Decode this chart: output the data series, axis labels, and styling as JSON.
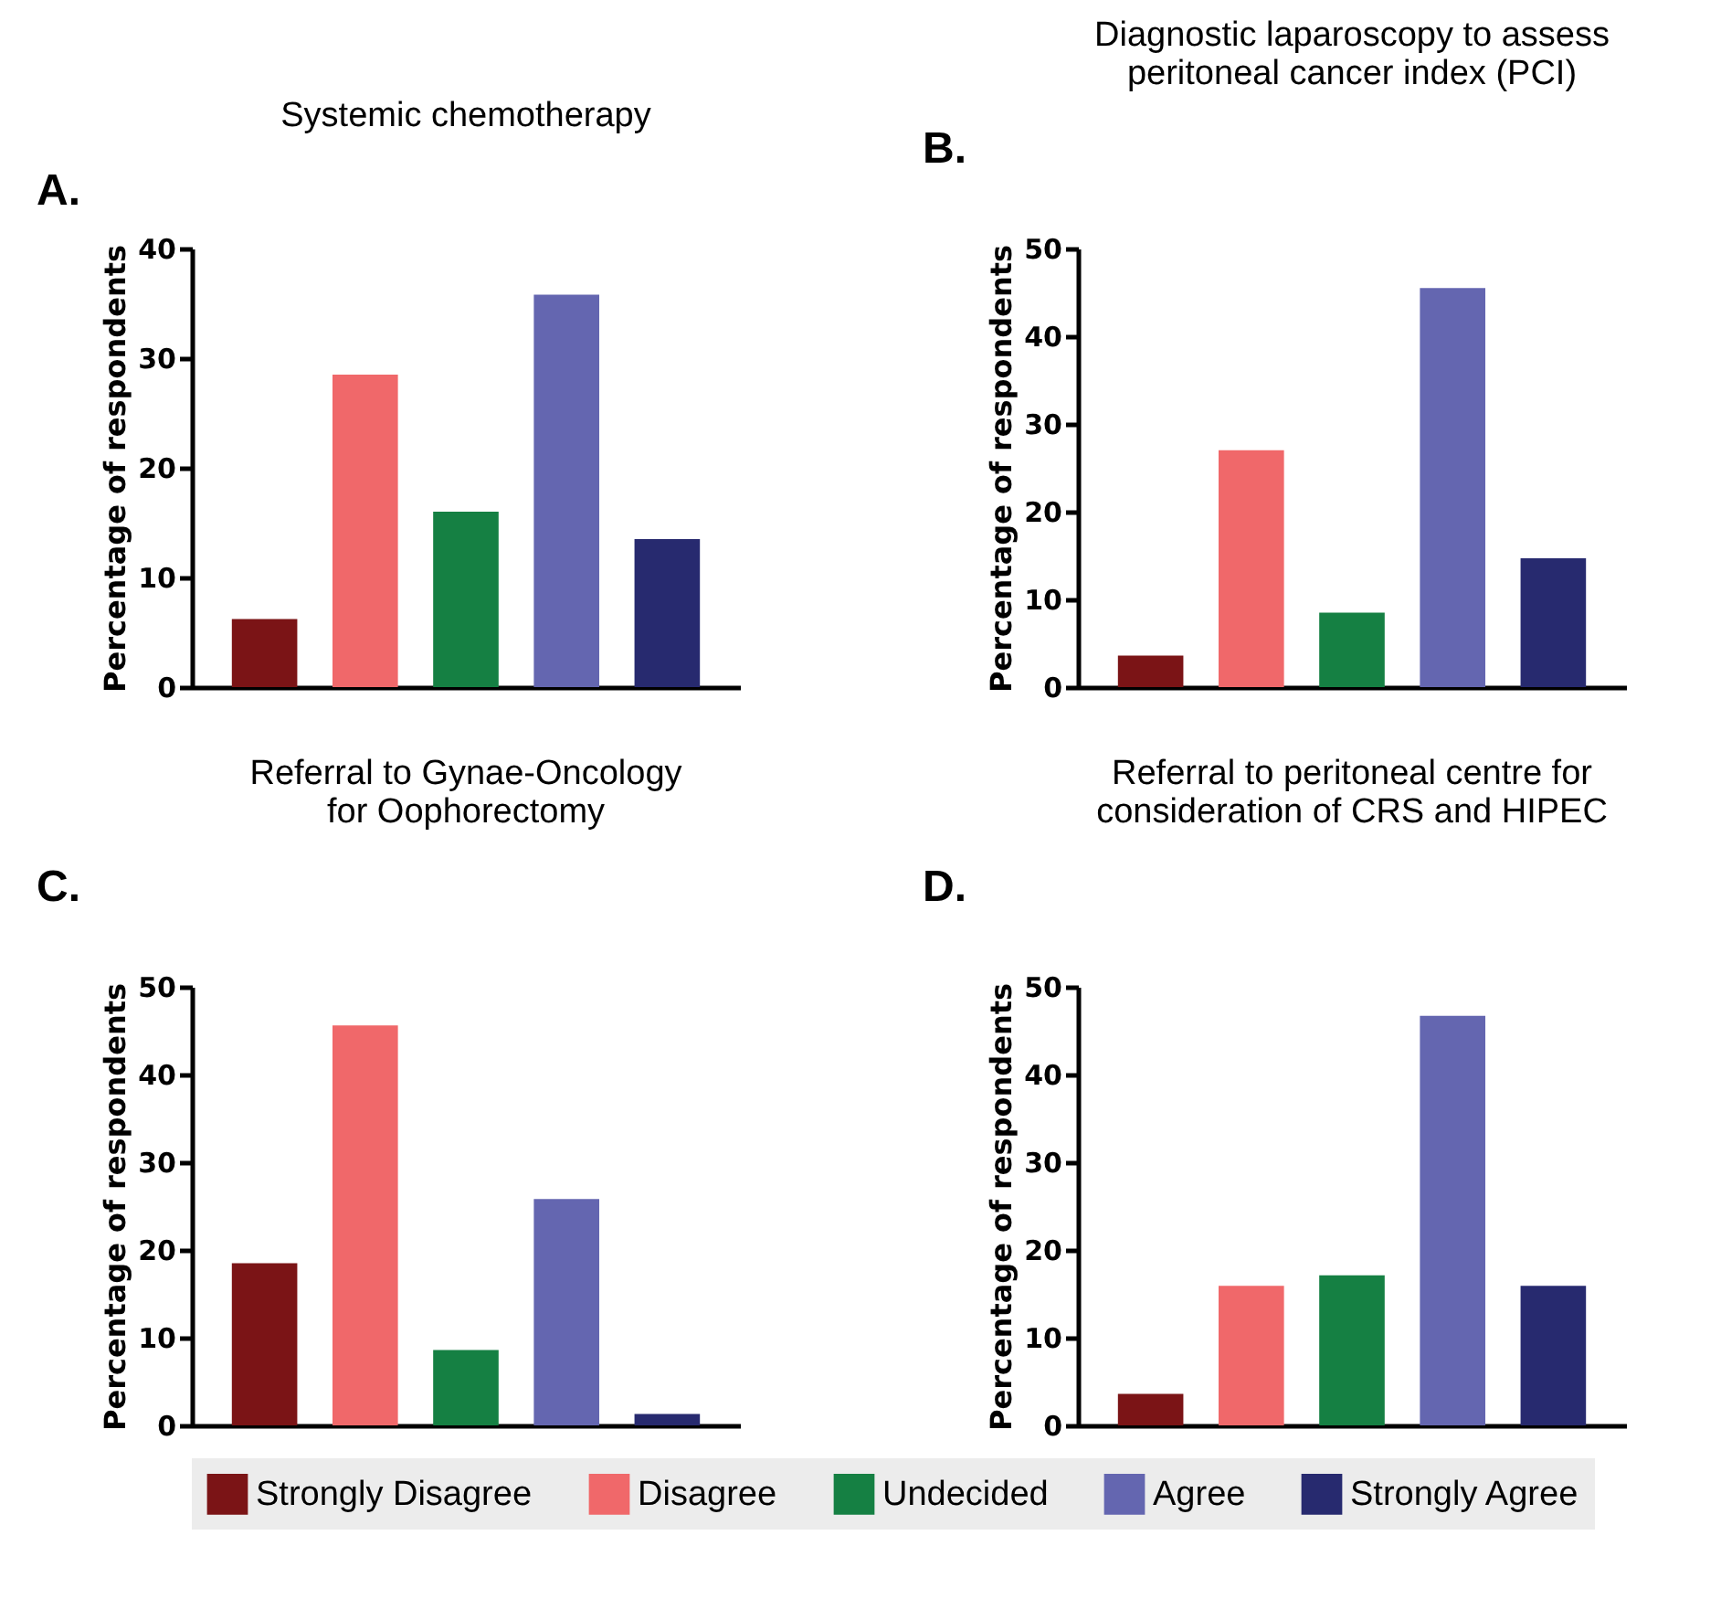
{
  "chart_data": [
    {
      "type": "bar",
      "title": "Systemic chemotherapy",
      "annotations": [
        "A."
      ],
      "ylabel": "Percentage of respondents",
      "categories": [
        null
      ],
      "ylim": [
        0,
        40
      ],
      "yticks": [
        0,
        10,
        20,
        30,
        40
      ],
      "tick_labels": "y",
      "legend": "bottom",
      "series": [
        {
          "name": "Strongly Disagree",
          "color": "#7b1416",
          "values": [
            6.2
          ]
        },
        {
          "name": "Disagree",
          "color": "#f0686a",
          "values": [
            28.5
          ]
        },
        {
          "name": "Undecided",
          "color": "#158043",
          "values": [
            16
          ]
        },
        {
          "name": "Agree",
          "color": "#6466b0",
          "values": [
            35.8
          ]
        },
        {
          "name": "Strongly Agree",
          "color": "#272a6f",
          "values": [
            13.5
          ]
        }
      ]
    },
    {
      "type": "bar",
      "title": "Diagnostic laparoscopy to assess\nperitoneal cancer index (PCI)",
      "annotations": [
        "B."
      ],
      "ylabel": "Percentage of respondents",
      "categories": [
        null
      ],
      "ylim": [
        0,
        50
      ],
      "yticks": [
        0,
        10,
        20,
        30,
        40,
        50
      ],
      "tick_labels": "y",
      "legend": "bottom",
      "series": [
        {
          "name": "Strongly Disagree",
          "color": "#7b1416",
          "values": [
            3.6
          ]
        },
        {
          "name": "Disagree",
          "color": "#f0686a",
          "values": [
            27
          ]
        },
        {
          "name": "Undecided",
          "color": "#158043",
          "values": [
            8.5
          ]
        },
        {
          "name": "Agree",
          "color": "#6466b0",
          "values": [
            45.5
          ]
        },
        {
          "name": "Strongly Agree",
          "color": "#272a6f",
          "values": [
            14.7
          ]
        }
      ]
    },
    {
      "type": "bar",
      "title": "Referral to Gynae-Oncology\nfor Oophorectomy",
      "annotations": [
        "C."
      ],
      "ylabel": "Percentage of respondents",
      "categories": [
        null
      ],
      "ylim": [
        0,
        50
      ],
      "yticks": [
        0,
        10,
        20,
        30,
        40,
        50
      ],
      "tick_labels": "y",
      "legend": "bottom",
      "series": [
        {
          "name": "Strongly Disagree",
          "color": "#7b1416",
          "values": [
            18.5
          ]
        },
        {
          "name": "Disagree",
          "color": "#f0686a",
          "values": [
            45.6
          ]
        },
        {
          "name": "Undecided",
          "color": "#158043",
          "values": [
            8.6
          ]
        },
        {
          "name": "Agree",
          "color": "#6466b0",
          "values": [
            25.8
          ]
        },
        {
          "name": "Strongly Agree",
          "color": "#272a6f",
          "values": [
            1.3
          ]
        }
      ]
    },
    {
      "type": "bar",
      "title": "Referral to peritoneal centre for\nconsideration of CRS and HIPEC",
      "annotations": [
        "D."
      ],
      "ylabel": "Percentage of respondents",
      "categories": [
        null
      ],
      "ylim": [
        0,
        50
      ],
      "yticks": [
        0,
        10,
        20,
        30,
        40,
        50
      ],
      "tick_labels": "y",
      "legend": "bottom",
      "series": [
        {
          "name": "Strongly Disagree",
          "color": "#7b1416",
          "values": [
            3.6
          ]
        },
        {
          "name": "Disagree",
          "color": "#f0686a",
          "values": [
            15.9
          ]
        },
        {
          "name": "Undecided",
          "color": "#158043",
          "values": [
            17.1
          ]
        },
        {
          "name": "Agree",
          "color": "#6466b0",
          "values": [
            46.7
          ]
        },
        {
          "name": "Strongly Agree",
          "color": "#272a6f",
          "values": [
            15.9
          ]
        }
      ]
    }
  ]
}
